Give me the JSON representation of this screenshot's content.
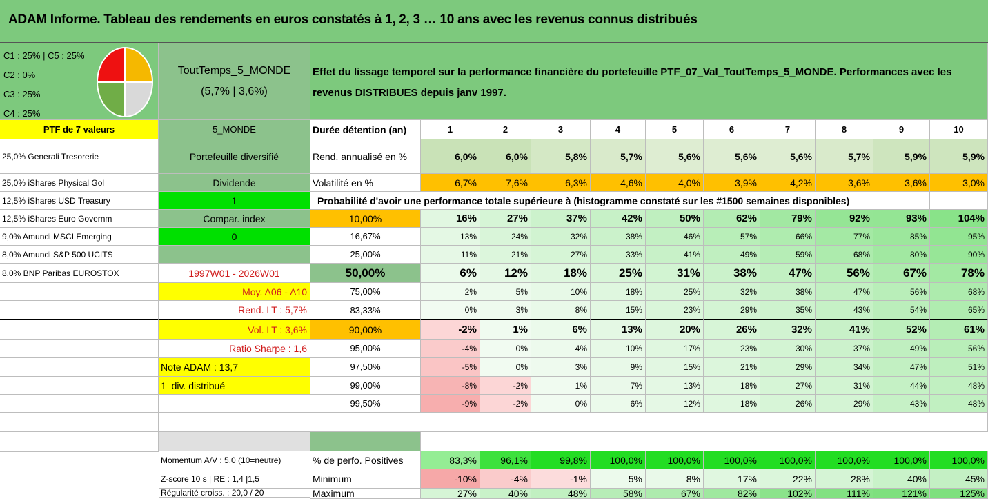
{
  "title": "ADAM Informe. Tableau des rendements en euros constatés à 1, 2, 3 … 10 ans avec les revenus connus distribués",
  "legend": [
    "C1 : 25% | C5 : 25%",
    "C2 : 0%",
    "C3 : 25%",
    "C4 : 25%"
  ],
  "pie": {
    "slices": [
      {
        "label": "C1",
        "value": 25,
        "color": "#f5b800"
      },
      {
        "label": "C5",
        "value": 25,
        "color": "#d9d9d9"
      },
      {
        "label": "C4",
        "value": 25,
        "color": "#70ad47"
      },
      {
        "label": "C3",
        "value": 25,
        "color": "#ee1111"
      }
    ]
  },
  "portfolio_name": "ToutTemps_5_MONDE",
  "portfolio_stats": "(5,7% | 3,6%)",
  "description": "Effet du lissage temporel sur la performance financière du portefeuille PTF_07_Val_ToutTemps_5_MONDE. Performances avec les revenus DISTRIBUES depuis janv 1997.",
  "ptf_label": "PTF de 7 valeurs",
  "region": "5_MONDE",
  "holdings": [
    "25,0% Generali Tresorerie",
    "25,0% iShares Physical Gol",
    "12,5% iShares USD Treasury",
    "12,5% iShares Euro Governm",
    "9,0% Amundi MSCI Emerging",
    "8,0% Amundi S&P 500 UCITS",
    "8,0% BNP Paribas EUROSTOX"
  ],
  "side": {
    "diversifie": "Portefeuille diversifié",
    "dividende": "Dividende",
    "dividende_val": "1",
    "compar": "Compar. index",
    "compar_val": "0",
    "period": "1997W01 - 2026W01",
    "moy": "Moy. A06 - A10",
    "rend_lt": "Rend. LT : 5,7%",
    "vol_lt": "Vol. LT : 3,6%",
    "sharpe": "Ratio Sharpe : 1,6",
    "note": "Note ADAM : 13,7",
    "div": "1_div. distribué",
    "momentum": "Momentum A/V : 5,0 (10=neutre)",
    "zscore": "Z-score 10 s | RE : 1,4 |1,5",
    "regularite": "Régularité croiss. : 20,0 / 20"
  },
  "years_label": "Durée détention (an)",
  "years": [
    "1",
    "2",
    "3",
    "4",
    "5",
    "6",
    "7",
    "8",
    "9",
    "10"
  ],
  "rend_label": "Rend. annualisé en %",
  "rend": [
    "6,0%",
    "6,0%",
    "5,8%",
    "5,7%",
    "5,6%",
    "5,6%",
    "5,6%",
    "5,7%",
    "5,9%",
    "5,9%"
  ],
  "vol_label": "Volatilité en %",
  "vol": [
    "6,7%",
    "7,6%",
    "6,3%",
    "4,6%",
    "4,0%",
    "3,9%",
    "4,2%",
    "3,6%",
    "3,6%",
    "3,0%"
  ],
  "proba_label": "Probabilité d'avoir une performance totale supérieure à (histogramme constaté sur les #1500 semaines disponibles)",
  "quantiles": [
    {
      "p": "10,00%",
      "v": [
        "16%",
        "27%",
        "37%",
        "42%",
        "50%",
        "62%",
        "79%",
        "92%",
        "93%",
        "104%"
      ]
    },
    {
      "p": "16,67%",
      "v": [
        "13%",
        "24%",
        "32%",
        "38%",
        "46%",
        "57%",
        "66%",
        "77%",
        "85%",
        "95%"
      ]
    },
    {
      "p": "25,00%",
      "v": [
        "11%",
        "21%",
        "27%",
        "33%",
        "41%",
        "49%",
        "59%",
        "68%",
        "80%",
        "90%"
      ]
    },
    {
      "p": "50,00%",
      "v": [
        "6%",
        "12%",
        "18%",
        "25%",
        "31%",
        "38%",
        "47%",
        "56%",
        "67%",
        "78%"
      ]
    },
    {
      "p": "75,00%",
      "v": [
        "2%",
        "5%",
        "10%",
        "18%",
        "25%",
        "32%",
        "38%",
        "47%",
        "56%",
        "68%"
      ]
    },
    {
      "p": "83,33%",
      "v": [
        "0%",
        "3%",
        "8%",
        "15%",
        "23%",
        "29%",
        "35%",
        "43%",
        "54%",
        "65%"
      ]
    },
    {
      "p": "90,00%",
      "v": [
        "-2%",
        "1%",
        "6%",
        "13%",
        "20%",
        "26%",
        "32%",
        "41%",
        "52%",
        "61%"
      ]
    },
    {
      "p": "95,00%",
      "v": [
        "-4%",
        "0%",
        "4%",
        "10%",
        "17%",
        "23%",
        "30%",
        "37%",
        "49%",
        "56%"
      ]
    },
    {
      "p": "97,50%",
      "v": [
        "-5%",
        "0%",
        "3%",
        "9%",
        "15%",
        "21%",
        "29%",
        "34%",
        "47%",
        "51%"
      ]
    },
    {
      "p": "99,00%",
      "v": [
        "-8%",
        "-2%",
        "1%",
        "7%",
        "13%",
        "18%",
        "27%",
        "31%",
        "44%",
        "48%"
      ]
    },
    {
      "p": "99,50%",
      "v": [
        "-9%",
        "-2%",
        "0%",
        "6%",
        "12%",
        "18%",
        "26%",
        "29%",
        "43%",
        "48%"
      ]
    }
  ],
  "positive_label": "% de perfo. Positives",
  "positive": [
    "83,3%",
    "96,1%",
    "99,8%",
    "100,0%",
    "100,0%",
    "100,0%",
    "100,0%",
    "100,0%",
    "100,0%",
    "100,0%"
  ],
  "min_label": "Minimum",
  "min": [
    "-10%",
    "-4%",
    "-1%",
    "5%",
    "8%",
    "17%",
    "22%",
    "28%",
    "40%",
    "45%"
  ],
  "max_label": "Maximum",
  "max": [
    "27%",
    "40%",
    "48%",
    "58%",
    "67%",
    "82%",
    "102%",
    "111%",
    "121%",
    "125%"
  ],
  "colors": {
    "green_header": "#7dc97d",
    "sage": "#8cc28c",
    "yellow": "#ffff00",
    "orange": "#ffc000",
    "bright_green": "#00e000",
    "red_text": "#d01c1c"
  }
}
